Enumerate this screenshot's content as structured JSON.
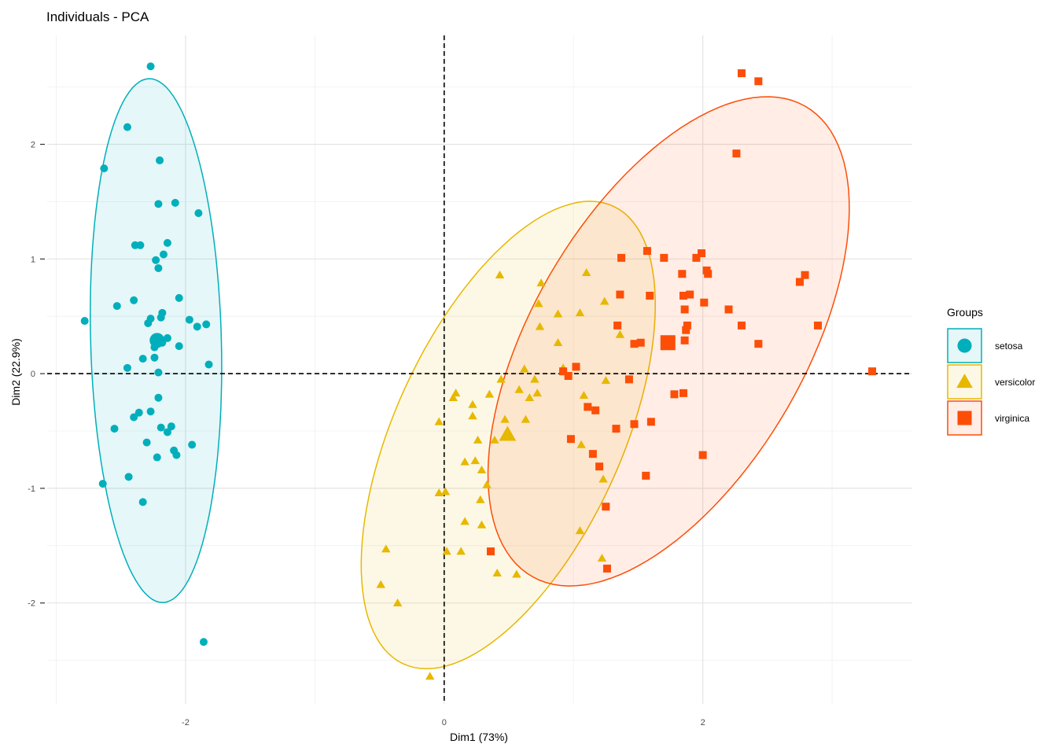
{
  "chart_data": {
    "type": "scatter",
    "title": "Individuals - PCA",
    "xlabel": "Dim1 (73%)",
    "ylabel": "Dim2 (22.9%)",
    "xlim": [
      -3.07,
      3.62
    ],
    "ylim": [
      -2.88,
      2.95
    ],
    "x_major_ticks": [
      -2,
      0,
      2
    ],
    "x_minor_grid": [
      -3,
      -1,
      1,
      3
    ],
    "y_major_ticks": [
      -2,
      -1,
      0,
      1,
      2
    ],
    "y_minor_grid": [
      -2.5,
      -1.5,
      -0.5,
      0.5,
      1.5,
      2.5
    ],
    "grid": true,
    "reference_lines": {
      "x": 0,
      "y": 0,
      "style": "dashed"
    },
    "legend": {
      "title": "Groups",
      "placement": "right"
    },
    "ellipses": "95% normal confidence ellipse per group",
    "series": [
      {
        "name": "setosa",
        "color": "#00AFBB",
        "shape": "circle",
        "centroid": [
          -2.22,
          0.29
        ],
        "points": [
          [
            -2.27,
            2.68
          ],
          [
            -2.45,
            2.15
          ],
          [
            -2.63,
            1.79
          ],
          [
            -2.2,
            1.86
          ],
          [
            -2.21,
            1.48
          ],
          [
            -2.08,
            1.49
          ],
          [
            -1.9,
            1.4
          ],
          [
            -2.14,
            1.14
          ],
          [
            -2.39,
            1.12
          ],
          [
            -2.35,
            1.12
          ],
          [
            -2.17,
            1.04
          ],
          [
            -2.23,
            0.99
          ],
          [
            -2.21,
            0.92
          ],
          [
            -2.05,
            0.66
          ],
          [
            -2.4,
            0.64
          ],
          [
            -2.53,
            0.59
          ],
          [
            -2.18,
            0.53
          ],
          [
            -2.19,
            0.49
          ],
          [
            -2.27,
            0.48
          ],
          [
            -2.29,
            0.44
          ],
          [
            -1.97,
            0.47
          ],
          [
            -1.91,
            0.41
          ],
          [
            -1.84,
            0.43
          ],
          [
            -2.14,
            0.31
          ],
          [
            -2.05,
            0.24
          ],
          [
            -2.24,
            0.23
          ],
          [
            -2.33,
            0.13
          ],
          [
            -2.24,
            0.14
          ],
          [
            -1.82,
            0.08
          ],
          [
            -2.45,
            0.05
          ],
          [
            -2.21,
            0.01
          ],
          [
            -2.21,
            -0.21
          ],
          [
            -2.78,
            0.46
          ],
          [
            -2.27,
            -0.33
          ],
          [
            -2.36,
            -0.34
          ],
          [
            -2.4,
            -0.38
          ],
          [
            -2.55,
            -0.48
          ],
          [
            -2.19,
            -0.47
          ],
          [
            -2.11,
            -0.46
          ],
          [
            -2.14,
            -0.51
          ],
          [
            -2.3,
            -0.6
          ],
          [
            -1.95,
            -0.62
          ],
          [
            -2.09,
            -0.67
          ],
          [
            -2.07,
            -0.71
          ],
          [
            -2.22,
            -0.73
          ],
          [
            -2.44,
            -0.9
          ],
          [
            -2.64,
            -0.96
          ],
          [
            -2.33,
            -1.12
          ],
          [
            -1.86,
            -2.34
          ],
          [
            -2.18,
            0.27
          ]
        ]
      },
      {
        "name": "versicolor",
        "color": "#E7B800",
        "shape": "triangle",
        "centroid": [
          0.49,
          -0.53
        ],
        "points": [
          [
            0.43,
            0.86
          ],
          [
            0.75,
            0.79
          ],
          [
            1.1,
            0.88
          ],
          [
            0.73,
            0.61
          ],
          [
            1.24,
            0.63
          ],
          [
            0.88,
            0.52
          ],
          [
            1.05,
            0.53
          ],
          [
            0.74,
            0.41
          ],
          [
            1.36,
            0.34
          ],
          [
            0.88,
            0.27
          ],
          [
            0.62,
            0.04
          ],
          [
            0.92,
            0.05
          ],
          [
            0.7,
            -0.05
          ],
          [
            0.44,
            -0.05
          ],
          [
            1.25,
            -0.06
          ],
          [
            0.58,
            -0.14
          ],
          [
            0.72,
            -0.17
          ],
          [
            0.66,
            -0.21
          ],
          [
            0.09,
            -0.17
          ],
          [
            0.07,
            -0.21
          ],
          [
            0.35,
            -0.18
          ],
          [
            1.08,
            -0.19
          ],
          [
            0.22,
            -0.27
          ],
          [
            0.22,
            -0.37
          ],
          [
            0.47,
            -0.4
          ],
          [
            0.63,
            -0.4
          ],
          [
            -0.04,
            -0.42
          ],
          [
            0.26,
            -0.58
          ],
          [
            0.39,
            -0.58
          ],
          [
            1.06,
            -0.62
          ],
          [
            0.16,
            -0.77
          ],
          [
            0.24,
            -0.76
          ],
          [
            0.29,
            -0.84
          ],
          [
            0.33,
            -0.97
          ],
          [
            1.23,
            -0.92
          ],
          [
            -0.04,
            -1.04
          ],
          [
            0.01,
            -1.03
          ],
          [
            0.28,
            -1.1
          ],
          [
            0.16,
            -1.29
          ],
          [
            0.29,
            -1.32
          ],
          [
            1.05,
            -1.37
          ],
          [
            -0.45,
            -1.53
          ],
          [
            0.02,
            -1.55
          ],
          [
            0.13,
            -1.55
          ],
          [
            1.22,
            -1.61
          ],
          [
            0.41,
            -1.74
          ],
          [
            0.56,
            -1.75
          ],
          [
            -0.49,
            -1.84
          ],
          [
            -0.36,
            -2.0
          ],
          [
            -0.11,
            -2.64
          ]
        ]
      },
      {
        "name": "virginica",
        "color": "#FC4E07",
        "shape": "square",
        "centroid": [
          1.73,
          0.27
        ],
        "points": [
          [
            2.3,
            2.62
          ],
          [
            2.43,
            2.55
          ],
          [
            2.26,
            1.92
          ],
          [
            1.57,
            1.07
          ],
          [
            1.37,
            1.01
          ],
          [
            1.7,
            1.01
          ],
          [
            1.99,
            1.05
          ],
          [
            1.95,
            1.01
          ],
          [
            2.03,
            0.9
          ],
          [
            2.04,
            0.87
          ],
          [
            1.84,
            0.87
          ],
          [
            2.79,
            0.86
          ],
          [
            2.75,
            0.8
          ],
          [
            1.36,
            0.69
          ],
          [
            1.59,
            0.68
          ],
          [
            1.9,
            0.69
          ],
          [
            1.85,
            0.68
          ],
          [
            2.01,
            0.62
          ],
          [
            2.2,
            0.56
          ],
          [
            1.86,
            0.56
          ],
          [
            1.34,
            0.42
          ],
          [
            2.3,
            0.42
          ],
          [
            1.88,
            0.42
          ],
          [
            1.87,
            0.38
          ],
          [
            2.89,
            0.42
          ],
          [
            1.52,
            0.27
          ],
          [
            1.47,
            0.26
          ],
          [
            1.86,
            0.29
          ],
          [
            2.43,
            0.26
          ],
          [
            1.02,
            0.06
          ],
          [
            0.92,
            0.02
          ],
          [
            0.96,
            -0.02
          ],
          [
            3.31,
            0.02
          ],
          [
            1.43,
            -0.05
          ],
          [
            1.85,
            -0.17
          ],
          [
            1.78,
            -0.18
          ],
          [
            1.11,
            -0.29
          ],
          [
            1.17,
            -0.32
          ],
          [
            1.6,
            -0.42
          ],
          [
            1.47,
            -0.44
          ],
          [
            1.33,
            -0.48
          ],
          [
            0.98,
            -0.57
          ],
          [
            1.15,
            -0.7
          ],
          [
            2.0,
            -0.71
          ],
          [
            1.2,
            -0.81
          ],
          [
            1.56,
            -0.89
          ],
          [
            1.25,
            -1.16
          ],
          [
            0.36,
            -1.55
          ],
          [
            1.26,
            -1.7
          ]
        ]
      }
    ]
  }
}
